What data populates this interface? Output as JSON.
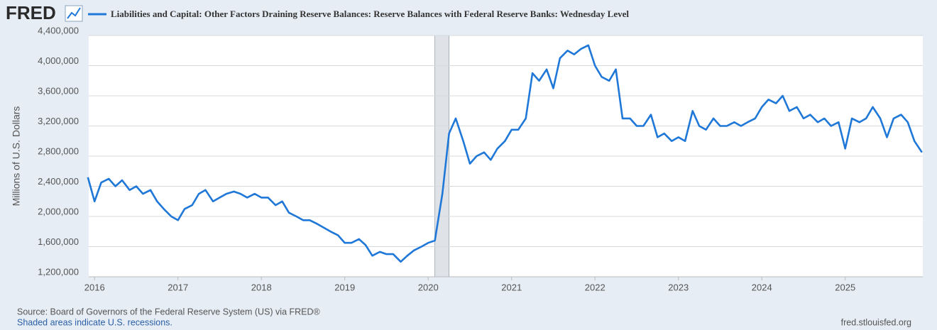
{
  "brand": "FRED",
  "chart_data": {
    "type": "line",
    "series": [
      {
        "name": "Liabilities and Capital: Other Factors Draining Reserve Balances: Reserve Balances with Federal Reserve Banks: Wednesday Level",
        "color": "#1f78d8",
        "values": [
          2520000,
          2200000,
          2450000,
          2500000,
          2400000,
          2480000,
          2350000,
          2400000,
          2300000,
          2350000,
          2200000,
          2100000,
          2000000,
          1950000,
          2100000,
          2150000,
          2300000,
          2350000,
          2200000,
          2250000,
          2300000,
          2330000,
          2300000,
          2250000,
          2300000,
          2250000,
          2250000,
          2150000,
          2200000,
          2050000,
          2000000,
          1950000,
          1950000,
          1900000,
          1850000,
          1800000,
          1750000,
          1650000,
          1650000,
          1700000,
          1620000,
          1480000,
          1530000,
          1500000,
          1500000,
          1400000,
          1480000,
          1550000,
          1600000,
          1650000,
          1680000,
          2300000,
          3100000,
          3300000,
          3000000,
          2700000,
          2800000,
          2850000,
          2750000,
          2900000,
          3000000,
          3150000,
          3150000,
          3300000,
          3900000,
          3800000,
          3950000,
          3700000,
          4100000,
          4200000,
          4150000,
          4220000,
          4270000,
          4000000,
          3850000,
          3800000,
          3950000,
          3300000,
          3300000,
          3200000,
          3200000,
          3350000,
          3050000,
          3100000,
          3000000,
          3050000,
          3000000,
          3400000,
          3200000,
          3150000,
          3300000,
          3200000,
          3200000,
          3250000,
          3200000,
          3250000,
          3300000,
          3450000,
          3550000,
          3500000,
          3600000,
          3400000,
          3450000,
          3300000,
          3350000,
          3250000,
          3300000,
          3200000,
          3250000,
          2900000,
          3300000,
          3250000,
          3300000,
          3450000,
          3300000,
          3050000,
          3300000,
          3350000,
          3250000,
          3000000,
          2850000
        ]
      }
    ],
    "x": [
      2015.92,
      2016.0,
      2016.08,
      2016.17,
      2016.25,
      2016.33,
      2016.42,
      2016.5,
      2016.58,
      2016.67,
      2016.75,
      2016.83,
      2016.92,
      2017.0,
      2017.08,
      2017.17,
      2017.25,
      2017.33,
      2017.42,
      2017.5,
      2017.58,
      2017.67,
      2017.75,
      2017.83,
      2017.92,
      2018.0,
      2018.08,
      2018.17,
      2018.25,
      2018.33,
      2018.42,
      2018.5,
      2018.58,
      2018.67,
      2018.75,
      2018.83,
      2018.92,
      2019.0,
      2019.08,
      2019.17,
      2019.25,
      2019.33,
      2019.42,
      2019.5,
      2019.58,
      2019.67,
      2019.75,
      2019.83,
      2019.92,
      2020.0,
      2020.08,
      2020.17,
      2020.25,
      2020.33,
      2020.42,
      2020.5,
      2020.58,
      2020.67,
      2020.75,
      2020.83,
      2020.92,
      2021.0,
      2021.08,
      2021.17,
      2021.25,
      2021.33,
      2021.42,
      2021.5,
      2021.58,
      2021.67,
      2021.75,
      2021.83,
      2021.92,
      2022.0,
      2022.08,
      2022.17,
      2022.25,
      2022.33,
      2022.42,
      2022.5,
      2022.58,
      2022.67,
      2022.75,
      2022.83,
      2022.92,
      2023.0,
      2023.08,
      2023.17,
      2023.25,
      2023.33,
      2023.42,
      2023.5,
      2023.58,
      2023.67,
      2023.75,
      2023.83,
      2023.92,
      2024.0,
      2024.08,
      2024.17,
      2024.25,
      2024.33,
      2024.42,
      2024.5,
      2024.58,
      2024.67,
      2024.75,
      2024.83,
      2024.92,
      2025.0,
      2025.08,
      2025.17,
      2025.25,
      2025.33,
      2025.42,
      2025.5,
      2025.58,
      2025.67,
      2025.75,
      2025.83,
      2025.92
    ],
    "xlim": [
      2015.93,
      2025.93
    ],
    "xticks": [
      2016,
      2017,
      2018,
      2019,
      2020,
      2021,
      2022,
      2023,
      2024,
      2025
    ],
    "ylim": [
      1200000,
      4400000
    ],
    "yticks": [
      {
        "value": 1200000,
        "label": "1,200,000"
      },
      {
        "value": 1600000,
        "label": "1,600,000"
      },
      {
        "value": 2000000,
        "label": "2,000,000"
      },
      {
        "value": 2400000,
        "label": "2,400,000"
      },
      {
        "value": 2800000,
        "label": "2,800,000"
      },
      {
        "value": 3200000,
        "label": "3,200,000"
      },
      {
        "value": 3600000,
        "label": "3,600,000"
      },
      {
        "value": 4000000,
        "label": "4,000,000"
      },
      {
        "value": 4400000,
        "label": "4,400,000"
      }
    ],
    "ylabel": "Millions of U.S. Dollars",
    "recessions": [
      [
        2020.08,
        2020.25
      ]
    ],
    "grid": true,
    "source": "Source: Board of Governors of the Federal Reserve System (US) via FRED®",
    "note": "Shaded areas indicate U.S. recessions.",
    "url": "fred.stlouisfed.org"
  }
}
